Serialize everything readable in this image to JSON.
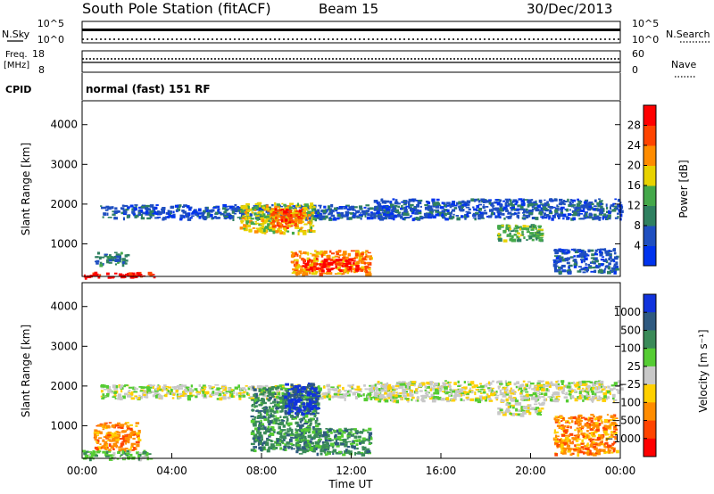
{
  "header": {
    "station": "South Pole Station (fitACF)",
    "beam": "Beam 15",
    "date": "30/Dec/2013"
  },
  "top_panels": {
    "nsky_label": "N.Sky",
    "nsky_ticks": [
      "10^5",
      "10^0"
    ],
    "nsearch_label": "N.Search",
    "nsearch_ticks": [
      "10^5",
      "10^0"
    ],
    "freq_label": "Freq.",
    "freq_unit": "[MHz]",
    "freq_ticks": [
      "18",
      "8"
    ],
    "nave_label": "Nave",
    "nave_ticks": [
      "60",
      "0"
    ],
    "cpid_label": "CPID",
    "cpid_value": "normal (fast) 151 RF"
  },
  "chart_data": [
    {
      "type": "heatmap",
      "name": "power-panel",
      "ylabel": "Slant Range [km]",
      "ylim": [
        180,
        4600
      ],
      "yticks": [
        1000,
        2000,
        3000,
        4000
      ],
      "xlim": [
        0,
        24
      ],
      "colorbar": {
        "label": "Power [dB]",
        "ticks": [
          "4",
          "8",
          "12",
          "16",
          "20",
          "24",
          "28"
        ],
        "colors": [
          "#0033ee",
          "#1f4fc0",
          "#2f8060",
          "#44a84a",
          "#e8d200",
          "#ff8c00",
          "#ff4400",
          "#ff0000"
        ]
      },
      "regions": [
        {
          "t": [
            0.8,
            14.0
          ],
          "r": [
            1650,
            2000
          ],
          "level": 1
        },
        {
          "t": [
            13.0,
            24.0
          ],
          "r": [
            1650,
            2150
          ],
          "level": 1
        },
        {
          "t": [
            7.0,
            10.3
          ],
          "r": [
            1300,
            2050
          ],
          "level": 4
        },
        {
          "t": [
            8.4,
            9.8
          ],
          "r": [
            1450,
            1900
          ],
          "level": 6
        },
        {
          "t": [
            9.3,
            12.8
          ],
          "r": [
            250,
            850
          ],
          "level": 5
        },
        {
          "t": [
            9.8,
            12.2
          ],
          "r": [
            350,
            650
          ],
          "level": 7
        },
        {
          "t": [
            0.0,
            3.2
          ],
          "r": [
            180,
            300
          ],
          "level": 7
        },
        {
          "t": [
            0.5,
            2.0
          ],
          "r": [
            500,
            800
          ],
          "level": 2
        },
        {
          "t": [
            18.5,
            20.5
          ],
          "r": [
            1100,
            1500
          ],
          "level": 3
        },
        {
          "t": [
            21.0,
            23.8
          ],
          "r": [
            300,
            900
          ],
          "level": 1
        }
      ]
    },
    {
      "type": "heatmap",
      "name": "velocity-panel",
      "ylabel": "Slant Range [km]",
      "ylim": [
        180,
        4600
      ],
      "yticks": [
        1000,
        2000,
        3000,
        4000
      ],
      "xlim": [
        0,
        24
      ],
      "xticks": [
        "00:00",
        "04:00",
        "08:00",
        "12:00",
        "16:00",
        "20:00",
        "00:00"
      ],
      "xlabel": "Time UT",
      "colorbar": {
        "label": "Velocity [m s⁻¹]",
        "ticks": [
          "1000",
          "500",
          "100",
          "25",
          "−25",
          "−100",
          "−500",
          "−1000"
        ],
        "colors": [
          "#1133dd",
          "#2f5a80",
          "#3a8a58",
          "#55cc33",
          "#c8c8c8",
          "#ffd000",
          "#ff8c00",
          "#ff4400",
          "#ff0000"
        ]
      },
      "regions": [
        {
          "t": [
            0.8,
            14.0
          ],
          "r": [
            1700,
            2050
          ],
          "level": 4
        },
        {
          "t": [
            13.0,
            24.0
          ],
          "r": [
            1650,
            2150
          ],
          "level": 4
        },
        {
          "t": [
            7.5,
            10.5
          ],
          "r": [
            400,
            2000
          ],
          "level": 2
        },
        {
          "t": [
            9.0,
            10.5
          ],
          "r": [
            1300,
            2100
          ],
          "level": 0
        },
        {
          "t": [
            9.5,
            12.8
          ],
          "r": [
            300,
            950
          ],
          "level": 2
        },
        {
          "t": [
            0.5,
            2.5
          ],
          "r": [
            400,
            1100
          ],
          "level": 6
        },
        {
          "t": [
            21.0,
            23.8
          ],
          "r": [
            300,
            1300
          ],
          "level": 6
        },
        {
          "t": [
            0.0,
            3.0
          ],
          "r": [
            180,
            400
          ],
          "level": 3
        },
        {
          "t": [
            18.5,
            20.5
          ],
          "r": [
            1300,
            1600
          ],
          "level": 4
        }
      ]
    }
  ]
}
